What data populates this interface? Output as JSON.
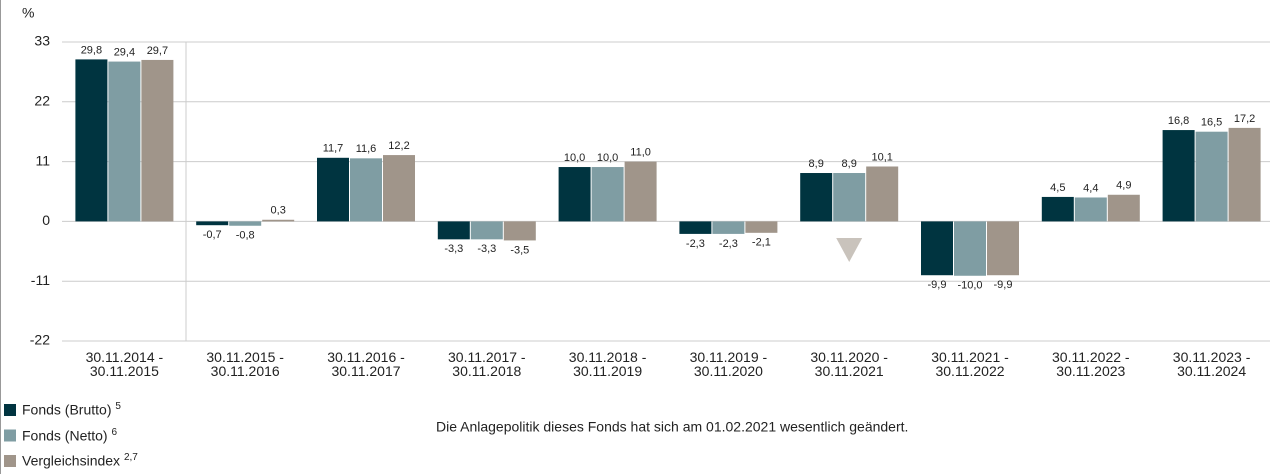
{
  "chart_data": {
    "type": "bar",
    "y_label": "%",
    "categories": [
      "30.11.2014 - 30.11.2015",
      "30.11.2015 - 30.11.2016",
      "30.11.2016 - 30.11.2017",
      "30.11.2017 - 30.11.2018",
      "30.11.2018 - 30.11.2019",
      "30.11.2019 - 30.11.2020",
      "30.11.2020 - 30.11.2021",
      "30.11.2021 - 30.11.2022",
      "30.11.2022 - 30.11.2023",
      "30.11.2023 - 30.11.2024"
    ],
    "series": [
      {
        "name": "Fonds (Brutto)",
        "note": "5",
        "color": "#003440",
        "values": [
          29.8,
          -0.7,
          11.7,
          -3.3,
          10.0,
          -2.3,
          8.9,
          -9.9,
          4.5,
          16.8
        ],
        "value_labels": [
          "29,8",
          "-0,7",
          "11,7",
          "-3,3",
          "10,0",
          "-2,3",
          "8,9",
          "-9,9",
          "4,5",
          "16,8"
        ]
      },
      {
        "name": "Fonds (Netto)",
        "note": "6",
        "color": "#7f9da3",
        "values": [
          29.4,
          -0.8,
          11.6,
          -3.3,
          10.0,
          -2.3,
          8.9,
          -10.0,
          4.4,
          16.5
        ],
        "value_labels": [
          "29,4",
          "-0,8",
          "11,6",
          "-3,3",
          "10,0",
          "-2,3",
          "8,9",
          "-10,0",
          "4,4",
          "16,5"
        ]
      },
      {
        "name": "Vergleichsindex",
        "note": "2,7",
        "color": "#a0958a",
        "values": [
          29.7,
          0.3,
          12.2,
          -3.5,
          11.0,
          -2.1,
          10.1,
          -9.9,
          4.9,
          17.2
        ],
        "value_labels": [
          "29,7",
          "0,3",
          "12,2",
          "-3,5",
          "11,0",
          "-2,1",
          "10,1",
          "-9,9",
          "4,9",
          "17,2"
        ]
      }
    ],
    "annotation": "Die Anlagepolitik dieses Fonds hat sich am 01.02.2021 wesentlich geändert.",
    "ylim": [
      -22,
      33
    ],
    "yticks": [
      33,
      22,
      11,
      0,
      -11,
      -22
    ],
    "grid": true
  }
}
